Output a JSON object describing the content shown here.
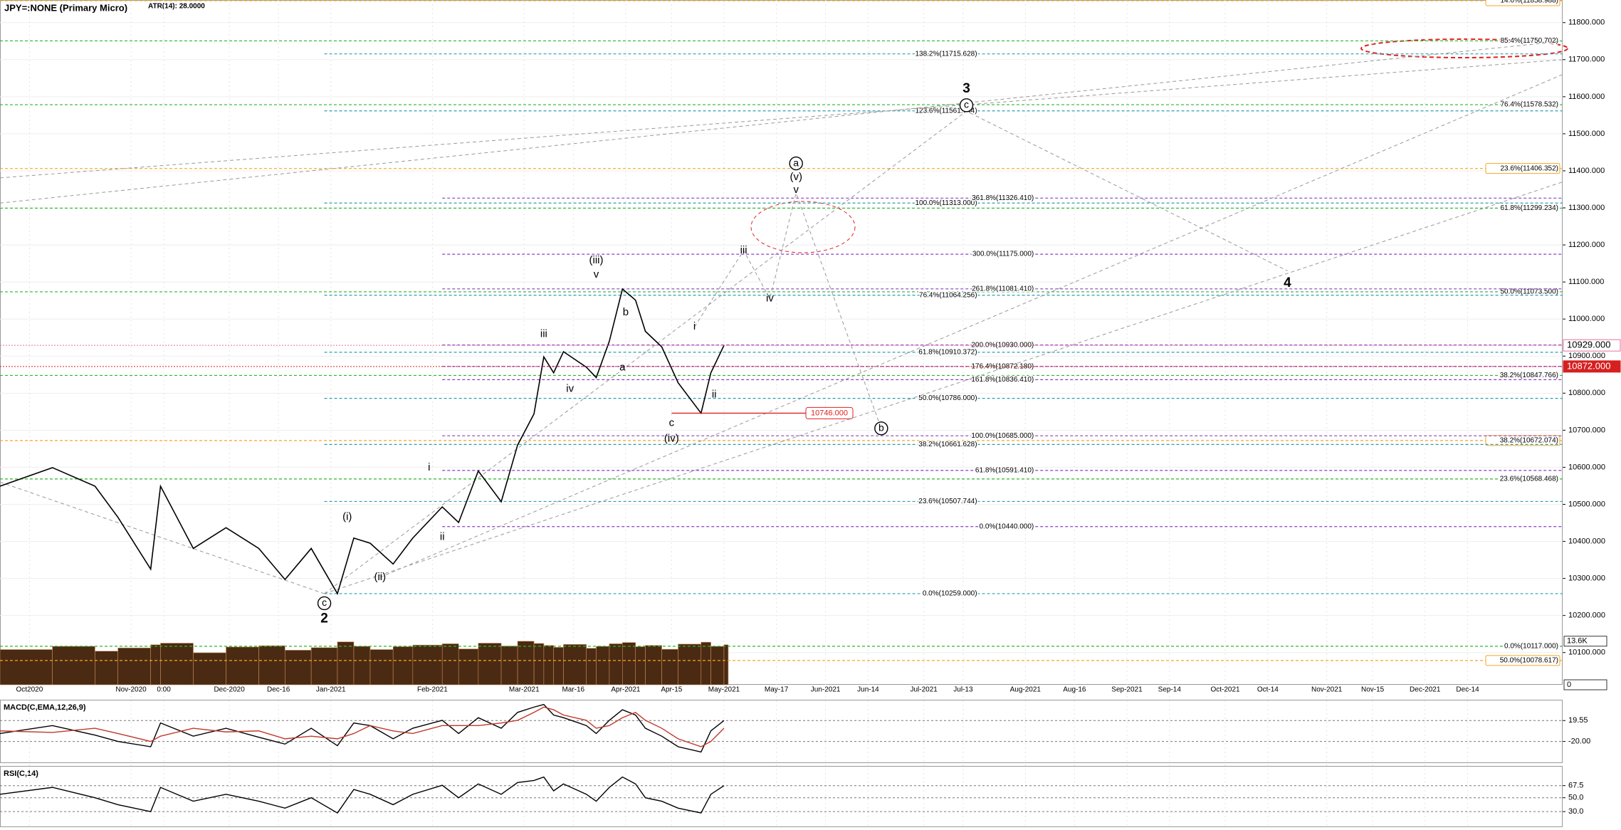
{
  "chart_data": [
    {
      "type": "line",
      "title": "JPY=:NONE (Primary Micro)",
      "subtitle": "ATR(14): 28.0000",
      "x": [
        -9,
        7,
        20,
        27,
        37,
        40,
        50,
        60,
        70,
        78,
        86,
        94,
        99,
        104,
        111,
        117,
        126,
        131,
        137,
        144,
        149,
        154,
        157,
        160,
        163,
        170,
        173,
        177,
        181,
        185,
        188,
        193,
        198,
        205,
        208,
        212
      ],
      "series": [
        {
          "color": "#000000",
          "values": [
            10549,
            10599,
            10549,
            10465,
            10325,
            10549,
            10381,
            10437,
            10381,
            10297,
            10381,
            10259,
            10409,
            10395,
            10339,
            10409,
            10493,
            10451,
            10590,
            10507,
            10660,
            10744,
            10898,
            10855,
            10912,
            10870,
            10842,
            10940,
            11081,
            11051,
            10967,
            10925,
            10828,
            10746,
            10855,
            10929
          ]
        }
      ],
      "volume": {
        "color": "#4a2a12",
        "values": [
          11000,
          12000,
          10500,
          11500,
          12500,
          13000,
          10000,
          11800,
          12200,
          10800,
          11600,
          13400,
          12000,
          11000,
          11900,
          12400,
          12800,
          11200,
          13000,
          12100,
          13600,
          12900,
          12300,
          11700,
          12600,
          11400,
          12000,
          12800,
          13200,
          11900,
          12300,
          11100,
          12700,
          13300,
          12000,
          12500
        ],
        "ylim": [
          0,
          16000
        ],
        "yticks": [
          {
            "value": 13600,
            "label": "13.6K"
          },
          0
        ]
      },
      "xlim": [
        -9,
        468
      ],
      "xticks": [
        {
          "value": 0,
          "label": "Oct2020"
        },
        {
          "value": 31,
          "label": "Nov-2020"
        },
        {
          "value": 41,
          "label": "0:00"
        },
        {
          "value": 61,
          "label": "Dec-2020"
        },
        {
          "value": 76,
          "label": "Dec-16"
        },
        {
          "value": 92,
          "label": "Jan-2021"
        },
        {
          "value": 123,
          "label": "Feb-2021"
        },
        {
          "value": 151,
          "label": "Mar-2021"
        },
        {
          "value": 166,
          "label": "Mar-16"
        },
        {
          "value": 182,
          "label": "Apr-2021"
        },
        {
          "value": 196,
          "label": "Apr-15"
        },
        {
          "value": 212,
          "label": "May-2021"
        },
        {
          "value": 228,
          "label": "May-17"
        },
        {
          "value": 243,
          "label": "Jun-2021"
        },
        {
          "value": 256,
          "label": "Jun-14"
        },
        {
          "value": 273,
          "label": "Jul-2021"
        },
        {
          "value": 285,
          "label": "Jul-13"
        },
        {
          "value": 304,
          "label": "Aug-2021"
        },
        {
          "value": 319,
          "label": "Aug-16"
        },
        {
          "value": 335,
          "label": "Sep-2021"
        },
        {
          "value": 348,
          "label": "Sep-14"
        },
        {
          "value": 365,
          "label": "Oct-2021"
        },
        {
          "value": 378,
          "label": "Oct-14"
        },
        {
          "value": 396,
          "label": "Nov-2021"
        },
        {
          "value": 410,
          "label": "Nov-15"
        },
        {
          "value": 426,
          "label": "Dec-2021"
        },
        {
          "value": 439,
          "label": "Dec-14"
        }
      ],
      "ylim": [
        10013,
        11861
      ],
      "yticks": [
        {
          "value": 10100,
          "label": "10100.000"
        },
        {
          "value": 10200,
          "label": "10200.000"
        },
        {
          "value": 10300,
          "label": "10300.000"
        },
        {
          "value": 10400,
          "label": "10400.000"
        },
        {
          "value": 10500,
          "label": "10500.000"
        },
        {
          "value": 10600,
          "label": "10600.000"
        },
        {
          "value": 10700,
          "label": "10700.000"
        },
        {
          "value": 10800,
          "label": "10800.000"
        },
        {
          "value": 10900,
          "label": "10900.000"
        },
        {
          "value": 11000,
          "label": "11000.000"
        },
        {
          "value": 11100,
          "label": "11100.000"
        },
        {
          "value": 11200,
          "label": "11200.000"
        },
        {
          "value": 11300,
          "label": "11300.000"
        },
        {
          "value": 11400,
          "label": "11400.000"
        },
        {
          "value": 11500,
          "label": "11500.000"
        },
        {
          "value": 11600,
          "label": "11600.000"
        },
        {
          "value": 11700,
          "label": "11700.000"
        },
        {
          "value": 11800,
          "label": "11800.000"
        }
      ],
      "levels": [
        {
          "value": 11858.988,
          "label": "14.6%(11858.988)",
          "color": "#f5a623",
          "boxed": true
        },
        {
          "value": 11750.702,
          "label": "85.4%(11750.702)",
          "color": "#2cb52c"
        },
        {
          "value": 11578.532,
          "label": "76.4%(11578.532)",
          "color": "#2cb52c"
        },
        {
          "value": 11406.352,
          "label": "23.6%(11406.352)",
          "color": "#f5a623",
          "boxed": true
        },
        {
          "value": 11299.234,
          "label": "61.8%(11299.234)",
          "color": "#2cb52c"
        },
        {
          "value": 11073.5,
          "label": "50.0%(11073.500)",
          "color": "#2cb52c"
        },
        {
          "value": 10847.766,
          "label": "38.2%(10847.766)",
          "color": "#2cb52c"
        },
        {
          "value": 10672.074,
          "label": "38.2%(10672.074)",
          "color": "#f5a623",
          "boxed": true
        },
        {
          "value": 10568.468,
          "label": "23.6%(10568.468)",
          "color": "#2cb52c"
        },
        {
          "value": 10117,
          "label": "0.0%(10117.000)",
          "color": "#2cb52c"
        },
        {
          "value": 10078.617,
          "label": "50.0%(10078.617)",
          "color": "#f5a623",
          "boxed": true
        },
        {
          "value": 11715.628,
          "label": "138.2%(11715.628)",
          "color": "#2e9fb0",
          "start": 90
        },
        {
          "value": 11561.744,
          "label": "123.6%(11561.744)",
          "color": "#2e9fb0",
          "start": 90
        },
        {
          "value": 11313,
          "label": "100.0%(11313.000)",
          "color": "#2e9fb0",
          "start": 90
        },
        {
          "value": 11064.256,
          "label": "76.4%(11064.256)",
          "color": "#2e9fb0",
          "start": 90
        },
        {
          "value": 10910.372,
          "label": "61.8%(10910.372)",
          "color": "#2e9fb0",
          "start": 90
        },
        {
          "value": 10786,
          "label": "50.0%(10786.000)",
          "color": "#2e9fb0",
          "start": 90
        },
        {
          "value": 10661.628,
          "label": "38.2%(10661.628)",
          "color": "#2e9fb0",
          "start": 90
        },
        {
          "value": 10507.744,
          "label": "23.6%(10507.744)",
          "color": "#2e9fb0",
          "start": 90
        },
        {
          "value": 10259,
          "label": "0.0%(10259.000)",
          "color": "#2e9fb0",
          "start": 90
        },
        {
          "value": 11326.41,
          "label": "361.8%(11326.410)",
          "color": "#8b3fc8",
          "start": 126
        },
        {
          "value": 11175,
          "label": "300.0%(11175.000)",
          "color": "#8b3fc8",
          "start": 126
        },
        {
          "value": 11081.41,
          "label": "261.8%(11081.410)",
          "color": "#8b3fc8",
          "start": 126
        },
        {
          "value": 10930,
          "label": "200.0%(10930.000)",
          "color": "#8b3fc8",
          "start": 126
        },
        {
          "value": 10872.18,
          "label": "176.4%(10872.180)",
          "color": "#8b3fc8",
          "start": 126
        },
        {
          "value": 10836.41,
          "label": "161.8%(10836.410)",
          "color": "#8b3fc8",
          "start": 126
        },
        {
          "value": 10685,
          "label": "100.0%(10685.000)",
          "color": "#8b3fc8",
          "start": 126
        },
        {
          "value": 10591.41,
          "label": "61.8%(10591.410)",
          "color": "#8b3fc8",
          "start": 126
        },
        {
          "value": 10440,
          "label": "0.0%(10440.000)",
          "color": "#8b3fc8",
          "start": 126
        }
      ],
      "markers": [
        {
          "value": 10929,
          "label": "10929.000",
          "color": "#e5709a"
        },
        {
          "value": 10872,
          "label": "10872.000",
          "color": "#d62020",
          "filled": true
        },
        {
          "value": 10746,
          "label": "10746.000",
          "color": "#e02020",
          "start": 196,
          "end": 237
        }
      ],
      "annotations": [
        {
          "text": "2",
          "x": 90,
          "y": 10191,
          "bold": true
        },
        {
          "text": "c",
          "x": 90,
          "y": 10233,
          "circled": true
        },
        {
          "text": "(i)",
          "x": 97,
          "y": 10465
        },
        {
          "text": "(ii)",
          "x": 107,
          "y": 10303
        },
        {
          "text": "i",
          "x": 122,
          "y": 10599
        },
        {
          "text": "ii",
          "x": 126,
          "y": 10412
        },
        {
          "text": "iii",
          "x": 157,
          "y": 10959
        },
        {
          "text": "iv",
          "x": 165,
          "y": 10811
        },
        {
          "text": "(iii)",
          "x": 173,
          "y": 11158
        },
        {
          "text": "v",
          "x": 173,
          "y": 11119
        },
        {
          "text": "a",
          "x": 181,
          "y": 10869
        },
        {
          "text": "b",
          "x": 182,
          "y": 11018
        },
        {
          "text": "c",
          "x": 196,
          "y": 10719
        },
        {
          "text": "(iv)",
          "x": 196,
          "y": 10677
        },
        {
          "text": "i",
          "x": 203,
          "y": 10979
        },
        {
          "text": "ii",
          "x": 209,
          "y": 10796
        },
        {
          "text": "iii",
          "x": 218,
          "y": 11185
        },
        {
          "text": "iv",
          "x": 226,
          "y": 11055
        },
        {
          "text": "v",
          "x": 234,
          "y": 11348
        },
        {
          "text": "(v)",
          "x": 234,
          "y": 11383
        },
        {
          "text": "a",
          "x": 234,
          "y": 11420,
          "circled": true
        },
        {
          "text": "b",
          "x": 260,
          "y": 10705,
          "circled": true
        },
        {
          "text": "c",
          "x": 286,
          "y": 11577,
          "circled": true
        },
        {
          "text": "3",
          "x": 286,
          "y": 11621,
          "bold": true
        },
        {
          "text": "4",
          "x": 384,
          "y": 11096,
          "bold": true
        }
      ],
      "projections": [
        {
          "x": [
            90,
            286,
            384
          ],
          "y": [
            10259,
            11561,
            11130
          ]
        },
        {
          "x": [
            -9,
            468
          ],
          "y": [
            11313,
            11750
          ]
        },
        {
          "x": [
            -9,
            468
          ],
          "y": [
            11381,
            11700
          ]
        },
        {
          "x": [
            107,
            468
          ],
          "y": [
            10303,
            11660
          ]
        },
        {
          "x": [
            90,
            468
          ],
          "y": [
            10259,
            11370
          ]
        },
        {
          "x": [
            -9,
            90
          ],
          "y": [
            10560,
            10259
          ]
        },
        {
          "x": [
            203,
            218,
            226,
            234,
            260
          ],
          "y": [
            10979,
            11185,
            11055,
            11340,
            10705
          ]
        }
      ]
    },
    {
      "type": "line",
      "title": "MACD(C,EMA,12,26,9)",
      "x": [
        -9,
        7,
        20,
        27,
        37,
        40,
        50,
        60,
        70,
        78,
        86,
        94,
        99,
        104,
        111,
        117,
        126,
        131,
        137,
        144,
        149,
        154,
        157,
        160,
        163,
        170,
        173,
        177,
        181,
        185,
        188,
        193,
        198,
        205,
        208,
        212
      ],
      "xlim": [
        -9,
        468
      ],
      "series": [
        {
          "color": "#000000",
          "values": [
            -5,
            10,
            -8,
            -20,
            -30,
            15,
            -10,
            5,
            -12,
            -25,
            5,
            -28,
            15,
            10,
            -15,
            5,
            20,
            -5,
            25,
            5,
            35,
            45,
            50,
            30,
            25,
            10,
            -5,
            20,
            40,
            30,
            5,
            -10,
            -30,
            -40,
            0,
            19.55
          ]
        },
        {
          "color": "#c0392b",
          "values": [
            0,
            -3,
            5,
            -5,
            -20,
            -10,
            5,
            -2,
            0,
            -15,
            -10,
            -15,
            -5,
            10,
            0,
            -5,
            10,
            10,
            10,
            15,
            20,
            35,
            45,
            40,
            30,
            20,
            5,
            10,
            25,
            35,
            20,
            5,
            -15,
            -30,
            -20,
            5
          ]
        }
      ],
      "ylim": [
        -61,
        59
      ],
      "yticks": [
        19.55,
        {
          "value": -20,
          "label": "-20.00"
        }
      ]
    },
    {
      "type": "line",
      "title": "RSI(C,14)",
      "x": [
        -9,
        7,
        20,
        27,
        37,
        40,
        50,
        60,
        70,
        78,
        86,
        94,
        99,
        104,
        111,
        117,
        126,
        131,
        137,
        144,
        149,
        154,
        157,
        160,
        163,
        170,
        173,
        177,
        181,
        185,
        188,
        193,
        198,
        205,
        208,
        212
      ],
      "xlim": [
        -9,
        468
      ],
      "series": [
        {
          "color": "#000000",
          "values": [
            55,
            65,
            50,
            40,
            30,
            65,
            45,
            55,
            45,
            35,
            50,
            28,
            62,
            55,
            40,
            55,
            68,
            50,
            70,
            55,
            72,
            75,
            80,
            60,
            70,
            55,
            45,
            65,
            80,
            70,
            50,
            45,
            35,
            28,
            55,
            67.5
          ]
        }
      ],
      "ylim": [
        7.5,
        96
      ],
      "yticks": [
        67.5,
        {
          "value": 50,
          "label": "50.0"
        },
        {
          "value": 30,
          "label": "30.0"
        }
      ]
    }
  ]
}
